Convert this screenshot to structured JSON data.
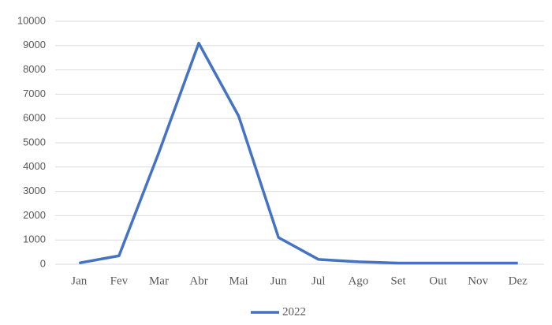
{
  "chart_data": {
    "type": "line",
    "categories": [
      "Jan",
      "Fev",
      "Mar",
      "Abr",
      "Mai",
      "Jun",
      "Jul",
      "Ago",
      "Set",
      "Out",
      "Nov",
      "Dez"
    ],
    "series": [
      {
        "name": "2022",
        "color": "#4472c4",
        "values": [
          50,
          350,
          4600,
          9100,
          6100,
          1100,
          200,
          100,
          50,
          50,
          50,
          50
        ]
      }
    ],
    "ylim": [
      0,
      10000
    ],
    "yticks": [
      0,
      1000,
      2000,
      3000,
      4000,
      5000,
      6000,
      7000,
      8000,
      9000,
      10000
    ],
    "grid": true,
    "legend": "bottom"
  }
}
